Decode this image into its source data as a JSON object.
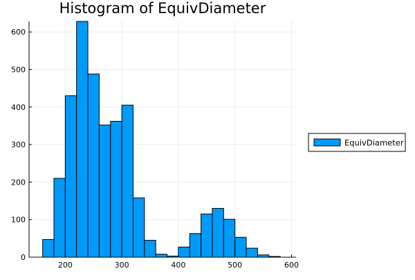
{
  "chart_data": {
    "type": "bar",
    "title": "Histogram of EquivDiameter",
    "xlabel": "",
    "ylabel": "",
    "bin_width": 20,
    "bin_starts": [
      160,
      180,
      200,
      220,
      240,
      260,
      280,
      300,
      320,
      340,
      360,
      380,
      400,
      420,
      440,
      460,
      480,
      500,
      520,
      540,
      560
    ],
    "values": [
      47,
      210,
      430,
      628,
      488,
      352,
      362,
      405,
      158,
      45,
      8,
      3,
      27,
      63,
      115,
      130,
      101,
      53,
      24,
      6,
      2
    ],
    "xlim": [
      136,
      608
    ],
    "ylim": [
      0,
      628
    ],
    "xticks": [
      200,
      300,
      400,
      500,
      600
    ],
    "yticks": [
      0,
      100,
      200,
      300,
      400,
      500,
      600
    ],
    "grid": true,
    "legend": {
      "position": "outer-right",
      "entries": [
        {
          "name": "EquivDiameter",
          "color": "#009af9"
        }
      ]
    },
    "colors": {
      "bar": "#009af9",
      "grid": "#ebebeb"
    }
  }
}
